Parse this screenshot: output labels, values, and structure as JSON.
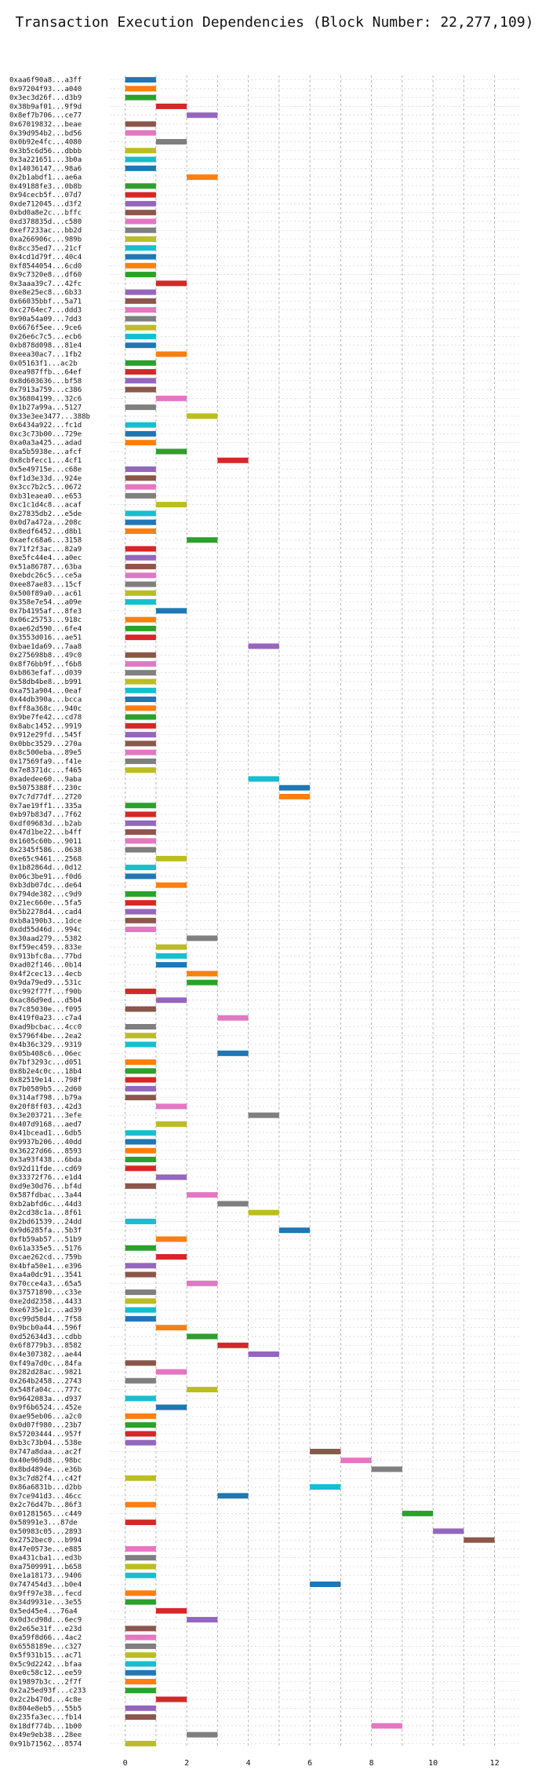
{
  "chart_data": {
    "type": "bar",
    "orientation": "horizontal-gantt",
    "title": "Transaction Execution Dependencies (Block Number: 22,277,109)",
    "xlabel": "",
    "ylabel": "",
    "xlim": [
      -0.5,
      12.8
    ],
    "xticks": [
      0,
      2,
      4,
      6,
      8,
      10,
      12
    ],
    "grid": "on",
    "palette": [
      "#1f77b4",
      "#ff7f0e",
      "#2ca02c",
      "#d62728",
      "#9467bd",
      "#8c564b",
      "#e377c2",
      "#7f7f7f",
      "#bcbd22",
      "#17becf"
    ],
    "transactions": [
      {
        "label": "0xaa6f90a8...a3ff",
        "start": 0
      },
      {
        "label": "0x97204f93...a040",
        "start": 0
      },
      {
        "label": "0x3ec3d26f...d3b9",
        "start": 0
      },
      {
        "label": "0x38b9af01...9f9d",
        "start": 1
      },
      {
        "label": "0x8ef7b706...ce77",
        "start": 2
      },
      {
        "label": "0x67019832...beae",
        "start": 0
      },
      {
        "label": "0x39d954b2...bd56",
        "start": 0
      },
      {
        "label": "0x0b92e4fc...4080",
        "start": 1
      },
      {
        "label": "0x3b5c6d56...dbbb",
        "start": 0
      },
      {
        "label": "0x3a221651...3b0a",
        "start": 0
      },
      {
        "label": "0x14036147...98a6",
        "start": 0
      },
      {
        "label": "0x2b1abdf1...ae6a",
        "start": 2
      },
      {
        "label": "0x49188fe3...0b8b",
        "start": 0
      },
      {
        "label": "0x94cecb5f...07d7",
        "start": 0
      },
      {
        "label": "0xde712045...d3f2",
        "start": 0
      },
      {
        "label": "0xbd0a8e2c...bffc",
        "start": 0
      },
      {
        "label": "0xd378835d...c580",
        "start": 0
      },
      {
        "label": "0xef7233ac...bb2d",
        "start": 0
      },
      {
        "label": "0xa266906c...989b",
        "start": 0
      },
      {
        "label": "0x8cc35ed7...21cf",
        "start": 0
      },
      {
        "label": "0x4cd1d79f...40c4",
        "start": 0
      },
      {
        "label": "0xf8544054...6cd0",
        "start": 0
      },
      {
        "label": "0x9c7320e8...df60",
        "start": 0
      },
      {
        "label": "0x3aaa39c7...42fc",
        "start": 1
      },
      {
        "label": "0xe8e25ec8...6b33",
        "start": 0
      },
      {
        "label": "0x66035bbf...5a71",
        "start": 0
      },
      {
        "label": "0xc2764ec7...ddd3",
        "start": 0
      },
      {
        "label": "0x90a54a09...7dd3",
        "start": 0
      },
      {
        "label": "0x6676f5ee...9ce6",
        "start": 0
      },
      {
        "label": "0x26e6c7c5...ecb6",
        "start": 0
      },
      {
        "label": "0xb878d098...81e4",
        "start": 0
      },
      {
        "label": "0xeea30ac7...1fb2",
        "start": 1
      },
      {
        "label": "0x05163f1...ac2b",
        "start": 0
      },
      {
        "label": "0xea987ffb...64ef",
        "start": 0
      },
      {
        "label": "0x8d603636...bf58",
        "start": 0
      },
      {
        "label": "0x7913a759...c386",
        "start": 0
      },
      {
        "label": "0x36804199...32c6",
        "start": 1
      },
      {
        "label": "0x1b27a99a...5127",
        "start": 0
      },
      {
        "label": "0x33e3ee3477...388b",
        "start": 2
      },
      {
        "label": "0x6434a922...fc1d",
        "start": 0
      },
      {
        "label": "0xc3c73b00...729e",
        "start": 0
      },
      {
        "label": "0xa0a3a425...adad",
        "start": 0
      },
      {
        "label": "0xa5b5938e...afcf",
        "start": 1
      },
      {
        "label": "0x8cbfecc1...4cf1",
        "start": 3
      },
      {
        "label": "0x5e49715e...c68e",
        "start": 0
      },
      {
        "label": "0xf1d3e33d...924e",
        "start": 0
      },
      {
        "label": "0x3cc7b2c5...0672",
        "start": 0
      },
      {
        "label": "0xb31eaea0...e653",
        "start": 0
      },
      {
        "label": "0xc1c1d4c8...acaf",
        "start": 1
      },
      {
        "label": "0x27835db2...e5de",
        "start": 0
      },
      {
        "label": "0x0d7a472a...208c",
        "start": 0
      },
      {
        "label": "0x8edf6452...d8b1",
        "start": 0
      },
      {
        "label": "0xaefc68a6...3158",
        "start": 2
      },
      {
        "label": "0x71f2f3ac...82a9",
        "start": 0
      },
      {
        "label": "0xe5fc44e4...a0ec",
        "start": 0
      },
      {
        "label": "0x51a86787...63ba",
        "start": 0
      },
      {
        "label": "0xebdc26c5...ce5a",
        "start": 0
      },
      {
        "label": "0xee87ae83...15cf",
        "start": 0
      },
      {
        "label": "0x500f89a0...ac61",
        "start": 0
      },
      {
        "label": "0x358e7e54...a09e",
        "start": 0
      },
      {
        "label": "0x7b4195af...8fe3",
        "start": 1
      },
      {
        "label": "0x06c25753...918c",
        "start": 0
      },
      {
        "label": "0xae62d590...6fe4",
        "start": 0
      },
      {
        "label": "0x3553d016...ae51",
        "start": 0
      },
      {
        "label": "0xbae1da69...7aa8",
        "start": 4
      },
      {
        "label": "0x275698b8...49c0",
        "start": 0
      },
      {
        "label": "0x8f76bb9f...f6b8",
        "start": 0
      },
      {
        "label": "0xb863efaf...d039",
        "start": 0
      },
      {
        "label": "0x58db4be8...b991",
        "start": 0
      },
      {
        "label": "0xa751a904...0eaf",
        "start": 0
      },
      {
        "label": "0x44db390a...bcca",
        "start": 0
      },
      {
        "label": "0xff8a368c...940c",
        "start": 0
      },
      {
        "label": "0x9be7fe42...cd78",
        "start": 0
      },
      {
        "label": "0x8abc1452...9919",
        "start": 0
      },
      {
        "label": "0x912e29fd...545f",
        "start": 0
      },
      {
        "label": "0x0bbc3529...270a",
        "start": 0
      },
      {
        "label": "0x8c500eba...89e5",
        "start": 0
      },
      {
        "label": "0x17569fa9...f41e",
        "start": 0
      },
      {
        "label": "0x7e8371dc...f465",
        "start": 0
      },
      {
        "label": "0xadedee60...9aba",
        "start": 4
      },
      {
        "label": "0x5075388f...230c",
        "start": 5
      },
      {
        "label": "0x7c7d77df...2720",
        "start": 5
      },
      {
        "label": "0x7ae19ff1...335a",
        "start": 0
      },
      {
        "label": "0xb97b83d7...7f62",
        "start": 0
      },
      {
        "label": "0xdf09683d...b2ab",
        "start": 0
      },
      {
        "label": "0x47d1be22...b4ff",
        "start": 0
      },
      {
        "label": "0x1605c60b...9011",
        "start": 0
      },
      {
        "label": "0x2345f586...0638",
        "start": 0
      },
      {
        "label": "0xe65c9461...2568",
        "start": 1
      },
      {
        "label": "0x1b82864d...0d12",
        "start": 0
      },
      {
        "label": "0x06c3be91...f0d6",
        "start": 0
      },
      {
        "label": "0xb3db07dc...de64",
        "start": 1
      },
      {
        "label": "0x794de382...c9d9",
        "start": 0
      },
      {
        "label": "0x21ec660e...5fa5",
        "start": 0
      },
      {
        "label": "0x5b2278d4...cad4",
        "start": 0
      },
      {
        "label": "0xb8a190b3...1dce",
        "start": 0
      },
      {
        "label": "0xdd55d46d...994c",
        "start": 0
      },
      {
        "label": "0x30aad279...5382",
        "start": 2
      },
      {
        "label": "0xf59ec459...833e",
        "start": 1
      },
      {
        "label": "0x913bfc8a...77bd",
        "start": 1
      },
      {
        "label": "0xad02f146...0b14",
        "start": 1
      },
      {
        "label": "0x4f2cec13...4ecb",
        "start": 2
      },
      {
        "label": "0x9da79ed9...531c",
        "start": 2
      },
      {
        "label": "0xc992f77f...f90b",
        "start": 0
      },
      {
        "label": "0xac86d9ed...d5b4",
        "start": 1
      },
      {
        "label": "0x7c85030e...f095",
        "start": 0
      },
      {
        "label": "0x419f0a23...c7a4",
        "start": 3
      },
      {
        "label": "0xad9bcbac...4cc0",
        "start": 0
      },
      {
        "label": "0x5796f4be...2ea2",
        "start": 0
      },
      {
        "label": "0x4b36c329...9319",
        "start": 0
      },
      {
        "label": "0x05b408c6...06ec",
        "start": 3
      },
      {
        "label": "0x7bf3293c...d051",
        "start": 0
      },
      {
        "label": "0x8b2e4c0c...18b4",
        "start": 0
      },
      {
        "label": "0x82519e14...798f",
        "start": 0
      },
      {
        "label": "0x7b0589b5...2d60",
        "start": 0
      },
      {
        "label": "0x314af798...b79a",
        "start": 0
      },
      {
        "label": "0x20f8ff03...42d3",
        "start": 1
      },
      {
        "label": "0x3e203721...3efe",
        "start": 4
      },
      {
        "label": "0x407d9168...aed7",
        "start": 1
      },
      {
        "label": "0x41bcead1...6db5",
        "start": 0
      },
      {
        "label": "0x9937b206...40dd",
        "start": 0
      },
      {
        "label": "0x36227d66...8593",
        "start": 0
      },
      {
        "label": "0x3a93f438...6bda",
        "start": 0
      },
      {
        "label": "0x92d11fde...cd69",
        "start": 0
      },
      {
        "label": "0x33372f76...e1d4",
        "start": 1
      },
      {
        "label": "0xd9e30d76...bf4d",
        "start": 0
      },
      {
        "label": "0x587fdbac...3a44",
        "start": 2
      },
      {
        "label": "0xb2abfd6c...44d3",
        "start": 3
      },
      {
        "label": "0x2cd38c1a...8f61",
        "start": 4
      },
      {
        "label": "0x2bd61539...24dd",
        "start": 0
      },
      {
        "label": "0x9d6285fa...5b3f",
        "start": 5
      },
      {
        "label": "0xfb59ab57...51b9",
        "start": 1
      },
      {
        "label": "0x61a335e5...5176",
        "start": 0
      },
      {
        "label": "0xcae262cd...759b",
        "start": 1
      },
      {
        "label": "0x4bfa50e1...e396",
        "start": 0
      },
      {
        "label": "0xa4a0dc91...3541",
        "start": 0
      },
      {
        "label": "0x70cce4a3...65a5",
        "start": 2
      },
      {
        "label": "0x37571890...c33e",
        "start": 0
      },
      {
        "label": "0xe2dd2358...4433",
        "start": 0
      },
      {
        "label": "0xe6735e1c...ad39",
        "start": 0
      },
      {
        "label": "0xc99d58d4...7f58",
        "start": 0
      },
      {
        "label": "0x9bcb0a44...596f",
        "start": 1
      },
      {
        "label": "0xd52634d3...cdbb",
        "start": 2
      },
      {
        "label": "0x6f8779b3...8582",
        "start": 3
      },
      {
        "label": "0x4e307382...ae44",
        "start": 4
      },
      {
        "label": "0xf49a7d0c...84fa",
        "start": 0
      },
      {
        "label": "0x282d28ac...9821",
        "start": 1
      },
      {
        "label": "0x264b2458...2743",
        "start": 0
      },
      {
        "label": "0x548fa04c...777c",
        "start": 2
      },
      {
        "label": "0x9642083a...d937",
        "start": 0
      },
      {
        "label": "0x9f6b6524...452e",
        "start": 1
      },
      {
        "label": "0xae95eb06...a2c0",
        "start": 0
      },
      {
        "label": "0x0d07f980...23b7",
        "start": 0
      },
      {
        "label": "0x57203444...957f",
        "start": 0
      },
      {
        "label": "0xb3c73b04...538e",
        "start": 0
      },
      {
        "label": "0x747a8daa...ac2f",
        "start": 6
      },
      {
        "label": "0x40e969d8...98bc",
        "start": 7
      },
      {
        "label": "0x8bd4894e...e36b",
        "start": 8
      },
      {
        "label": "0x3c7d82f4...c42f",
        "start": 0
      },
      {
        "label": "0x86a6831b...d2bb",
        "start": 6
      },
      {
        "label": "0x7ce941d3...46cc",
        "start": 3
      },
      {
        "label": "0x2c76d47b...86f3",
        "start": 0
      },
      {
        "label": "0x01281565...c449",
        "start": 9
      },
      {
        "label": "0x58991e3...87de",
        "start": 0
      },
      {
        "label": "0x50983c05...2893",
        "start": 10
      },
      {
        "label": "0x2752bec0...b994",
        "start": 11
      },
      {
        "label": "0x47e0573e...e885",
        "start": 0
      },
      {
        "label": "0xa431cba1...ed3b",
        "start": 0
      },
      {
        "label": "0xa7509991...b658",
        "start": 0
      },
      {
        "label": "0xe1a18173...9406",
        "start": 0
      },
      {
        "label": "0x747454d3...b0e4",
        "start": 6
      },
      {
        "label": "0x9ff97e38...fecd",
        "start": 0
      },
      {
        "label": "0x34d9931e...3e55",
        "start": 0
      },
      {
        "label": "0x5ed45e4...76a4",
        "start": 1
      },
      {
        "label": "0x0d3cd98d...6ec9",
        "start": 2
      },
      {
        "label": "0x2e65e31f...e23d",
        "start": 0
      },
      {
        "label": "0xa59f8d66...4ac2",
        "start": 0
      },
      {
        "label": "0x6558189e...c327",
        "start": 0
      },
      {
        "label": "0x5f931b15...ac71",
        "start": 0
      },
      {
        "label": "0x5c9d2242...bfaa",
        "start": 0
      },
      {
        "label": "0xe0c58c12...ee59",
        "start": 0
      },
      {
        "label": "0x19897b3c...2f7f",
        "start": 0
      },
      {
        "label": "0x2a25ed93f...c233",
        "start": 0
      },
      {
        "label": "0x2c2b470d...4c8e",
        "start": 1
      },
      {
        "label": "0x804e8eb5...55b5",
        "start": 0
      },
      {
        "label": "0x235fa3ec...fb14",
        "start": 0
      },
      {
        "label": "0x18df774b...1b00",
        "start": 8
      },
      {
        "label": "0x49e9eb38...28ee",
        "start": 2
      },
      {
        "label": "0x91b71562...8574",
        "start": 0
      }
    ]
  }
}
